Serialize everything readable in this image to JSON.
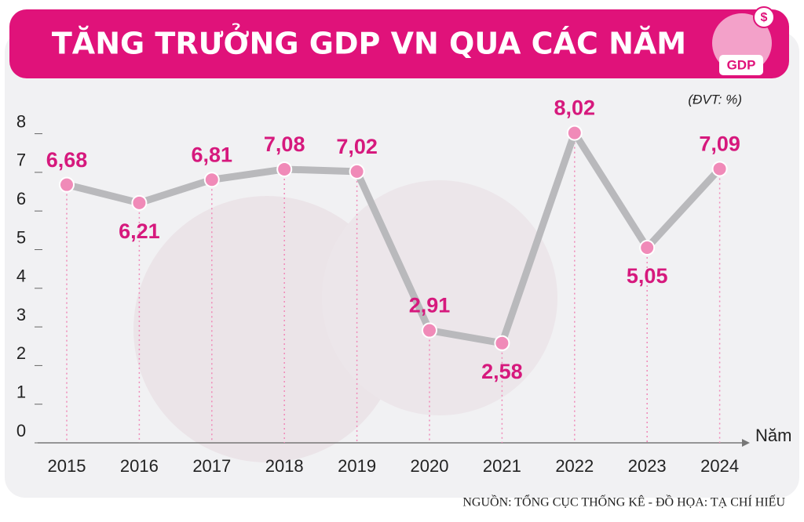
{
  "chart_data": {
    "type": "line",
    "title": "TĂNG TRƯỞNG GDP VN QUA CÁC NĂM",
    "icon_label": "GDP",
    "unit": "(ĐVT: %)",
    "x_label": "Năm",
    "source": "NGUỒN: TỔNG CỤC THỐNG KÊ - ĐỒ HỌA: TẠ CHÍ HIẾU",
    "categories": [
      "2015",
      "2016",
      "2017",
      "2018",
      "2019",
      "2020",
      "2021",
      "2022",
      "2023",
      "2024"
    ],
    "values": [
      6.68,
      6.21,
      6.81,
      7.08,
      7.02,
      2.91,
      2.58,
      8.02,
      5.05,
      7.09
    ],
    "value_labels": [
      "6,68",
      "6,21",
      "6,81",
      "7,08",
      "7,02",
      "2,91",
      "2,58",
      "8,02",
      "5,05",
      "7,09"
    ],
    "color": "#b9b9bc",
    "marker_color": "#f08ab8",
    "ylim": [
      0,
      8.3
    ],
    "yticks": [
      0,
      1,
      2,
      3,
      4,
      5,
      6,
      7,
      8
    ],
    "grid": false
  }
}
